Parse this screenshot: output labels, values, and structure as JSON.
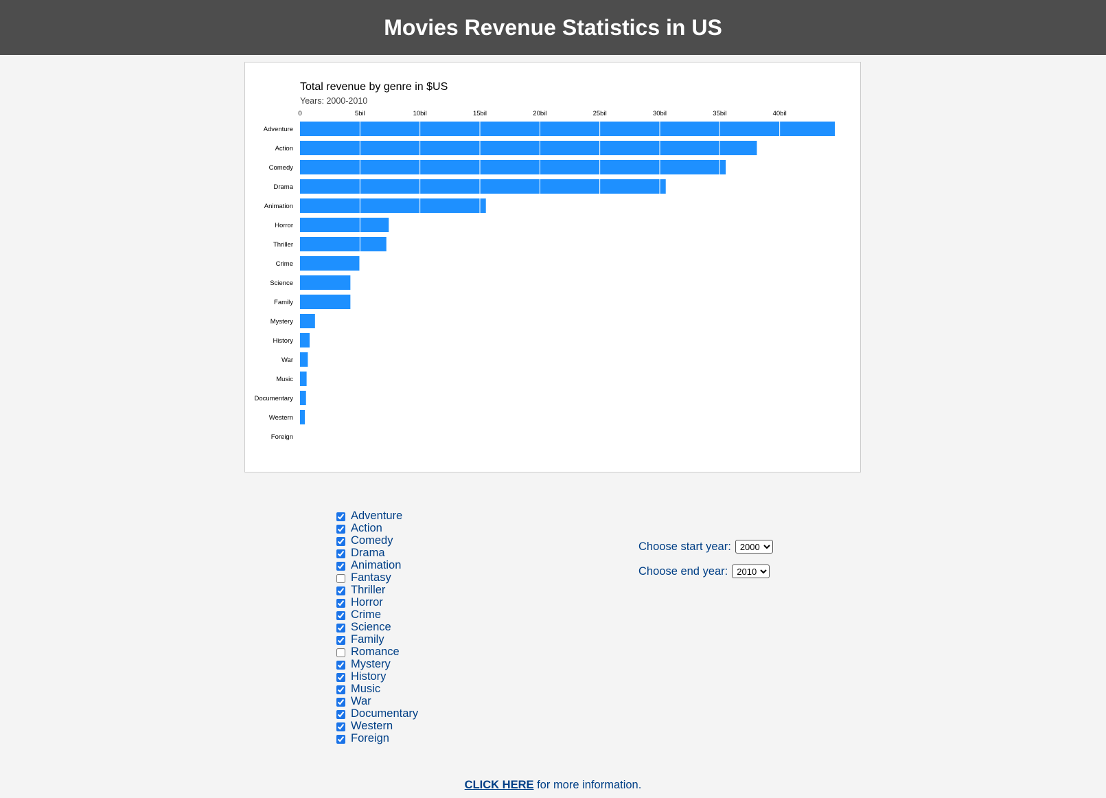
{
  "header": {
    "title": "Movies Revenue Statistics in US"
  },
  "chart_data": {
    "type": "bar",
    "orientation": "horizontal",
    "title": "Total revenue by genre in $US",
    "subtitle": "Years: 2000-2010",
    "categories": [
      "Adventure",
      "Action",
      "Comedy",
      "Drama",
      "Animation",
      "Horror",
      "Thriller",
      "Crime",
      "Science",
      "Family",
      "Mystery",
      "History",
      "War",
      "Music",
      "Documentary",
      "Western",
      "Foreign"
    ],
    "values": [
      44.6,
      38.1,
      35.5,
      30.5,
      15.5,
      7.4,
      7.2,
      4.95,
      4.2,
      4.2,
      1.25,
      0.8,
      0.65,
      0.55,
      0.5,
      0.4,
      0
    ],
    "xlim": [
      0,
      44.6
    ],
    "x_ticks": [
      {
        "value": 0,
        "label": "0"
      },
      {
        "value": 5,
        "label": "5bil"
      },
      {
        "value": 10,
        "label": "10bil"
      },
      {
        "value": 15,
        "label": "15bil"
      },
      {
        "value": 20,
        "label": "20bil"
      },
      {
        "value": 25,
        "label": "25bil"
      },
      {
        "value": 30,
        "label": "30bil"
      },
      {
        "value": 35,
        "label": "35bil"
      },
      {
        "value": 40,
        "label": "40bil"
      }
    ],
    "axis_position": "top",
    "bar_color": "#1e90ff",
    "gridline_color": "#ffffff"
  },
  "genres": [
    {
      "label": "Adventure",
      "checked": true
    },
    {
      "label": "Action",
      "checked": true
    },
    {
      "label": "Comedy",
      "checked": true
    },
    {
      "label": "Drama",
      "checked": true
    },
    {
      "label": "Animation",
      "checked": true
    },
    {
      "label": "Fantasy",
      "checked": false
    },
    {
      "label": "Thriller",
      "checked": true
    },
    {
      "label": "Horror",
      "checked": true
    },
    {
      "label": "Crime",
      "checked": true
    },
    {
      "label": "Science",
      "checked": true
    },
    {
      "label": "Family",
      "checked": true
    },
    {
      "label": "Romance",
      "checked": false
    },
    {
      "label": "Mystery",
      "checked": true
    },
    {
      "label": "History",
      "checked": true
    },
    {
      "label": "Music",
      "checked": true
    },
    {
      "label": "War",
      "checked": true
    },
    {
      "label": "Documentary",
      "checked": true
    },
    {
      "label": "Western",
      "checked": true
    },
    {
      "label": "Foreign",
      "checked": true
    }
  ],
  "controls": {
    "start_year_label": "Choose start year:",
    "start_year_value": "2000",
    "end_year_label": "Choose end year:",
    "end_year_value": "2010"
  },
  "footer": {
    "link_text": "CLICK HERE",
    "rest_text": " for more information."
  }
}
